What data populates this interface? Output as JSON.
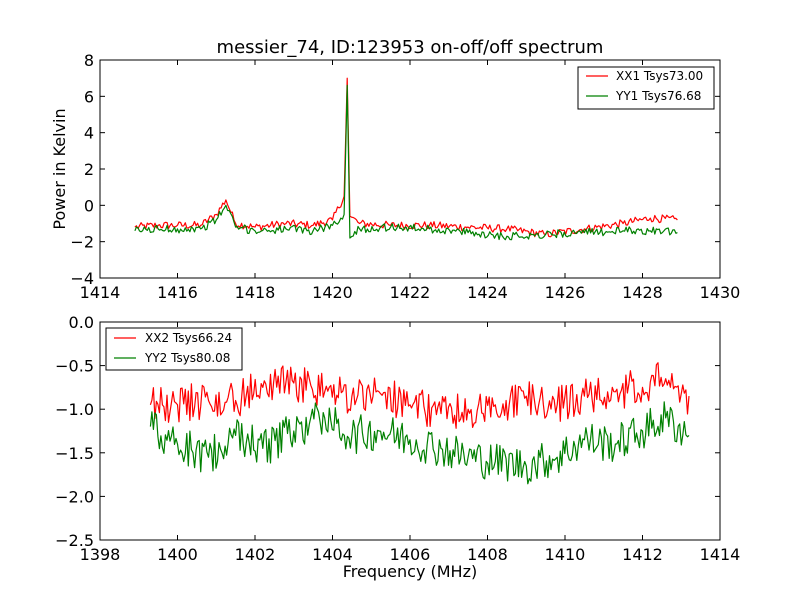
{
  "figure": {
    "title": "messier_74, ID:123953 on-off/off spectrum",
    "colors": {
      "xx": "#ff0000",
      "yy": "#008000",
      "frame": "#000000",
      "background": "#ffffff"
    }
  },
  "chart_data": [
    {
      "type": "line",
      "title": "messier_74, ID:123953 on-off/off spectrum",
      "xlabel": "",
      "ylabel": "Power in Kelvin",
      "xlim": [
        1414,
        1430
      ],
      "ylim": [
        -4,
        8
      ],
      "xticks": [
        "1414",
        "1416",
        "1418",
        "1420",
        "1422",
        "1424",
        "1426",
        "1428",
        "1430"
      ],
      "yticks": [
        "−4",
        "−2",
        "0",
        "2",
        "4",
        "6",
        "8"
      ],
      "legend": {
        "placement": "top-right",
        "entries": [
          "XX1 Tsys73.00",
          "YY1 Tsys76.68"
        ]
      },
      "grid": false,
      "series": [
        {
          "name": "XX1 Tsys73.00",
          "color": "#ff0000",
          "x": [
            1414.9,
            1415.5,
            1416.0,
            1416.6,
            1417.0,
            1417.25,
            1417.5,
            1418.0,
            1418.8,
            1419.5,
            1420.0,
            1420.3,
            1420.38,
            1420.45,
            1420.7,
            1421.5,
            1422.5,
            1423.5,
            1424.5,
            1425.5,
            1426.5,
            1427.5,
            1428.2,
            1428.9
          ],
          "y": [
            -1.2,
            -1.1,
            -1.1,
            -1.1,
            -0.5,
            0.3,
            -1.0,
            -1.2,
            -1.0,
            -1.1,
            -0.8,
            0.5,
            7.0,
            -0.6,
            -1.0,
            -1.1,
            -1.1,
            -1.2,
            -1.3,
            -1.6,
            -1.3,
            -1.0,
            -0.7,
            -0.8
          ]
        },
        {
          "name": "YY1 Tsys76.68",
          "color": "#008000",
          "x": [
            1414.9,
            1415.5,
            1416.0,
            1416.6,
            1417.0,
            1417.25,
            1417.5,
            1418.0,
            1418.8,
            1419.5,
            1420.0,
            1420.3,
            1420.38,
            1420.45,
            1420.7,
            1421.5,
            1422.5,
            1423.5,
            1424.5,
            1425.5,
            1426.5,
            1427.5,
            1428.2,
            1428.9
          ],
          "y": [
            -1.4,
            -1.3,
            -1.3,
            -1.3,
            -0.8,
            0.0,
            -1.2,
            -1.4,
            -1.3,
            -1.4,
            -1.1,
            -0.5,
            6.6,
            -1.8,
            -1.3,
            -1.2,
            -1.3,
            -1.5,
            -1.7,
            -1.6,
            -1.5,
            -1.4,
            -1.4,
            -1.5
          ]
        }
      ]
    },
    {
      "type": "line",
      "title": "",
      "xlabel": "Frequency (MHz)",
      "ylabel": "",
      "xlim": [
        1398,
        1414
      ],
      "ylim": [
        -2.5,
        0.0
      ],
      "xticks": [
        "1398",
        "1400",
        "1402",
        "1404",
        "1406",
        "1408",
        "1410",
        "1412",
        "1414"
      ],
      "yticks": [
        "−2.5",
        "−2.0",
        "−1.5",
        "−1.0",
        "−0.5",
        "0.0"
      ],
      "legend": {
        "placement": "top-left",
        "entries": [
          "XX2 Tsys66.24",
          "YY2 Tsys80.08"
        ]
      },
      "grid": false,
      "series": [
        {
          "name": "XX2 Tsys66.24",
          "color": "#ff0000",
          "x": [
            1399.3,
            1400.0,
            1400.8,
            1401.5,
            1402.2,
            1403.0,
            1403.8,
            1404.5,
            1405.2,
            1406.0,
            1406.8,
            1407.5,
            1408.2,
            1409.0,
            1409.8,
            1410.5,
            1411.3,
            1412.0,
            1412.6,
            1413.2
          ],
          "y": [
            -0.95,
            -0.95,
            -0.9,
            -0.9,
            -0.75,
            -0.7,
            -0.8,
            -0.85,
            -0.8,
            -0.95,
            -1.05,
            -1.0,
            -0.95,
            -0.85,
            -0.95,
            -0.85,
            -0.8,
            -0.75,
            -0.65,
            -0.85
          ]
        },
        {
          "name": "YY2 Tsys80.08",
          "color": "#008000",
          "x": [
            1399.3,
            1400.0,
            1400.8,
            1401.5,
            1402.2,
            1403.0,
            1403.8,
            1404.5,
            1405.2,
            1406.0,
            1406.8,
            1407.5,
            1408.2,
            1409.0,
            1409.8,
            1410.5,
            1411.3,
            1412.0,
            1412.6,
            1413.2
          ],
          "y": [
            -1.2,
            -1.4,
            -1.55,
            -1.3,
            -1.45,
            -1.25,
            -1.1,
            -1.3,
            -1.25,
            -1.35,
            -1.45,
            -1.55,
            -1.6,
            -1.65,
            -1.55,
            -1.35,
            -1.4,
            -1.25,
            -1.1,
            -1.3
          ]
        }
      ]
    }
  ]
}
